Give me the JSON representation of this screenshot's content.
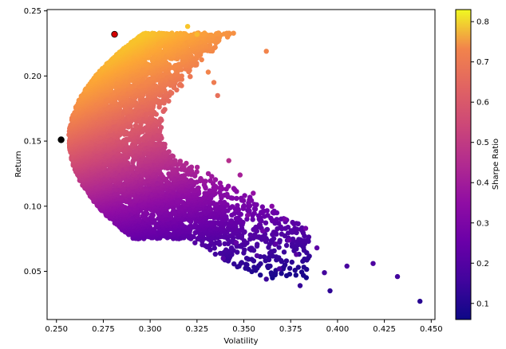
{
  "chart_data": {
    "type": "scatter",
    "title": "",
    "xlabel": "Volatility",
    "ylabel": "Return",
    "xlim": [
      0.245,
      0.452
    ],
    "ylim": [
      0.013,
      0.251
    ],
    "x_ticks": [
      "0.250",
      "0.275",
      "0.300",
      "0.325",
      "0.350",
      "0.375",
      "0.400",
      "0.425",
      "0.450"
    ],
    "y_ticks": [
      "0.05",
      "0.10",
      "0.15",
      "0.20",
      "0.25"
    ],
    "grid": false,
    "colormap": "plasma",
    "colorbar": {
      "label": "Sharpe Ratio",
      "range": [
        0.06,
        0.83
      ],
      "ticks": [
        "0.1",
        "0.2",
        "0.3",
        "0.4",
        "0.5",
        "0.6",
        "0.7",
        "0.8"
      ]
    },
    "highlights": [
      {
        "x": 0.281,
        "y": 0.232,
        "color": "#d40000",
        "marker": "max-sharpe"
      },
      {
        "x": 0.2525,
        "y": 0.151,
        "color": "#000000",
        "marker": "min-volatility"
      }
    ],
    "outlier_points": [
      [
        0.444,
        0.027,
        0.1
      ],
      [
        0.432,
        0.046,
        0.14
      ],
      [
        0.419,
        0.056,
        0.16
      ],
      [
        0.405,
        0.054,
        0.15
      ],
      [
        0.396,
        0.035,
        0.11
      ],
      [
        0.393,
        0.049,
        0.14
      ],
      [
        0.389,
        0.068,
        0.19
      ],
      [
        0.383,
        0.083,
        0.23
      ],
      [
        0.38,
        0.039,
        0.12
      ],
      [
        0.378,
        0.063,
        0.18
      ],
      [
        0.374,
        0.074,
        0.2
      ],
      [
        0.372,
        0.09,
        0.24
      ],
      [
        0.369,
        0.052,
        0.15
      ],
      [
        0.365,
        0.1,
        0.27
      ],
      [
        0.362,
        0.044,
        0.13
      ],
      [
        0.36,
        0.081,
        0.22
      ],
      [
        0.362,
        0.219,
        0.6
      ],
      [
        0.336,
        0.185,
        0.55
      ],
      [
        0.334,
        0.195,
        0.58
      ],
      [
        0.331,
        0.203,
        0.6
      ],
      [
        0.32,
        0.238,
        0.73
      ],
      [
        0.325,
        0.232,
        0.71
      ],
      [
        0.355,
        0.11,
        0.3
      ],
      [
        0.348,
        0.124,
        0.34
      ],
      [
        0.342,
        0.135,
        0.38
      ],
      [
        0.352,
        0.093,
        0.26
      ],
      [
        0.346,
        0.072,
        0.2
      ],
      [
        0.339,
        0.06,
        0.17
      ],
      [
        0.357,
        0.062,
        0.17
      ],
      [
        0.367,
        0.071,
        0.19
      ]
    ]
  }
}
